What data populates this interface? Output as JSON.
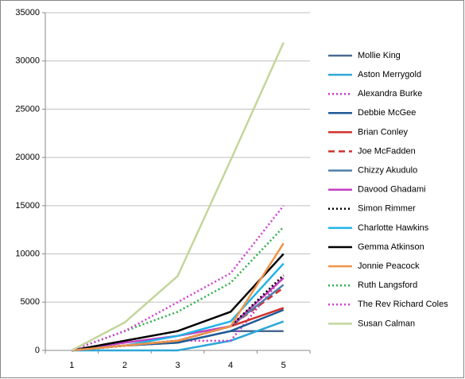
{
  "chart_data": {
    "type": "line",
    "categories": [
      "1",
      "2",
      "3",
      "4",
      "5"
    ],
    "ylim": [
      0,
      35000
    ],
    "yticks": [
      0,
      5000,
      10000,
      15000,
      20000,
      25000,
      30000,
      35000
    ],
    "grid": true,
    "series": [
      {
        "name": "Mollie King",
        "color": "#4a6a91",
        "dash": "solid",
        "values": [
          0,
          500,
          800,
          2000,
          2000
        ]
      },
      {
        "name": "Aston Merrygold",
        "color": "#2ea7d8",
        "dash": "solid",
        "values": [
          0,
          0,
          0,
          1000,
          3000
        ]
      },
      {
        "name": "Alexandra Burke",
        "color": "#cc33cc",
        "dash": "dot",
        "values": [
          0,
          500,
          1000,
          1000,
          7700
        ]
      },
      {
        "name": "Debbie McGee",
        "color": "#1f5a96",
        "dash": "solid",
        "values": [
          0,
          500,
          800,
          2000,
          4200
        ]
      },
      {
        "name": "Brian Conley",
        "color": "#d0312d",
        "dash": "solid",
        "values": [
          0,
          500,
          1000,
          2500,
          4400
        ]
      },
      {
        "name": "Joe McFadden",
        "color": "#d0312d",
        "dash": "dash",
        "values": [
          0,
          500,
          1000,
          2500,
          6500
        ]
      },
      {
        "name": "Chizzy Akudulo",
        "color": "#4f7fa8",
        "dash": "solid",
        "values": [
          0,
          500,
          1000,
          2500,
          6800
        ]
      },
      {
        "name": "Davood Ghadami",
        "color": "#c23fc2",
        "dash": "solid",
        "values": [
          0,
          800,
          1500,
          2500,
          7500
        ]
      },
      {
        "name": "Simon Rimmer",
        "color": "#000000",
        "dash": "dot",
        "values": [
          0,
          500,
          1000,
          2500,
          7800
        ]
      },
      {
        "name": "Charlotte Hawkins",
        "color": "#1fb4e8",
        "dash": "solid",
        "values": [
          0,
          500,
          1500,
          3000,
          9000
        ]
      },
      {
        "name": "Gemma Atkinson",
        "color": "#000000",
        "dash": "solid",
        "values": [
          0,
          1000,
          2000,
          4000,
          10000
        ]
      },
      {
        "name": "Jonnie Peacock",
        "color": "#f0954a",
        "dash": "solid",
        "values": [
          0,
          500,
          1000,
          2500,
          11100
        ]
      },
      {
        "name": "Ruth Langsford",
        "color": "#2eb04a",
        "dash": "dot",
        "values": [
          0,
          2000,
          4000,
          7000,
          12800
        ]
      },
      {
        "name": "The Rev Richard Coles",
        "color": "#d040d0",
        "dash": "dot",
        "values": [
          0,
          2000,
          5000,
          8000,
          15000
        ]
      },
      {
        "name": "Susan Calman",
        "color": "#c3d69b",
        "dash": "solid",
        "values": [
          0,
          2900,
          7700,
          19700,
          31900
        ]
      }
    ]
  }
}
